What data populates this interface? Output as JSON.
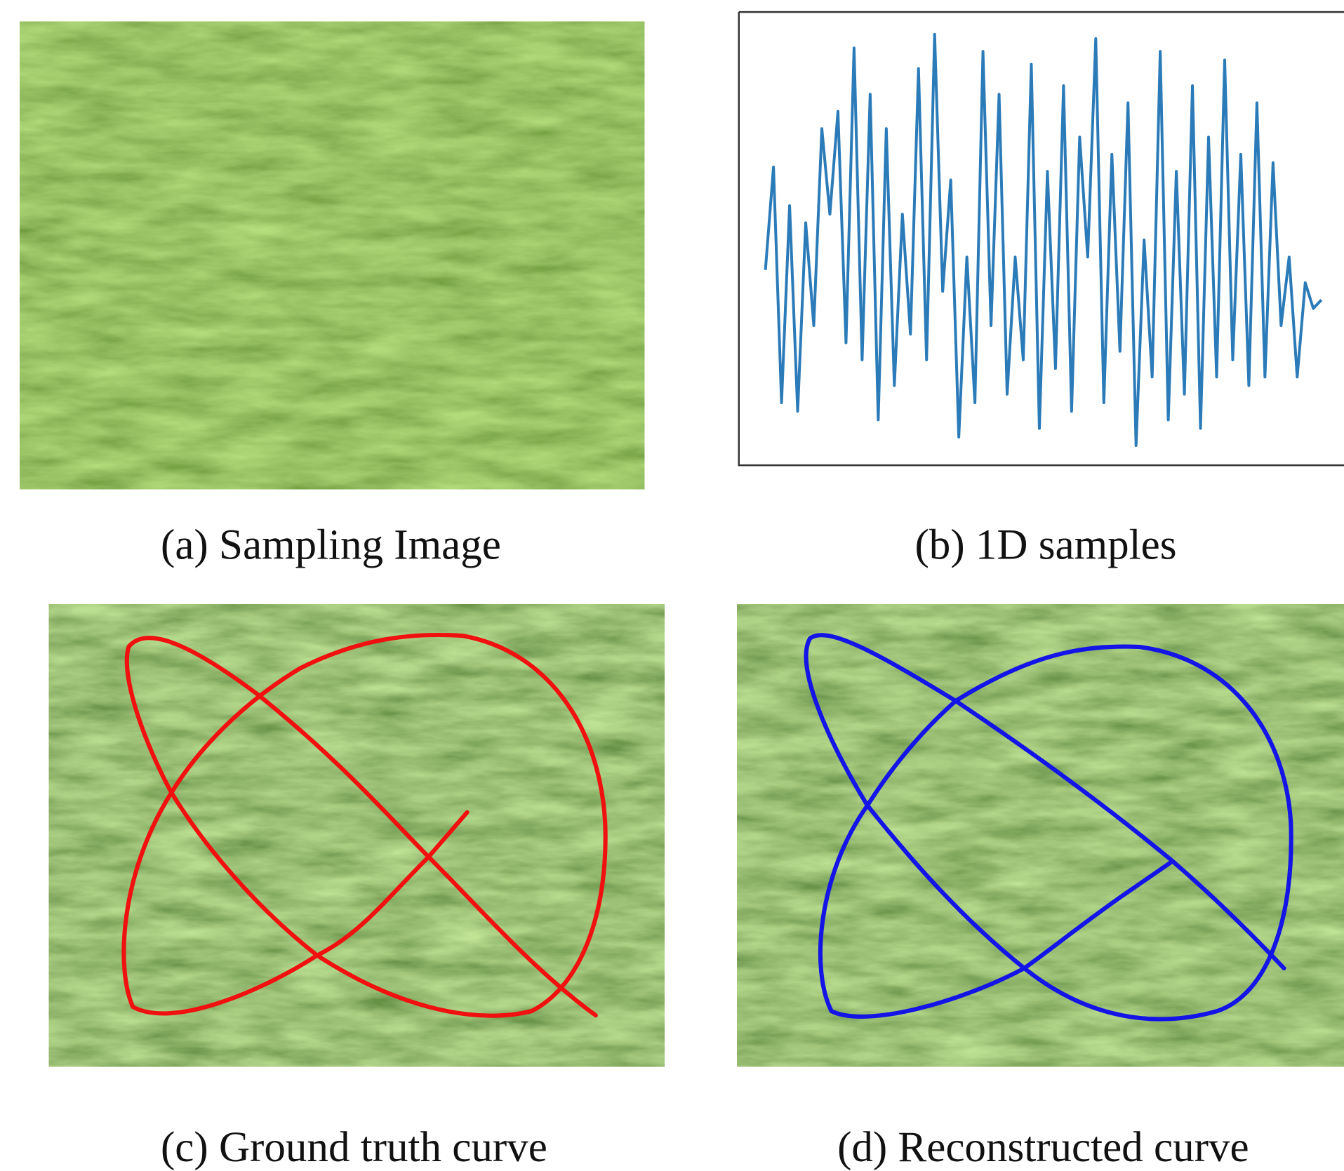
{
  "figure": {
    "panels": [
      {
        "caption": "(a) Sampling Image"
      },
      {
        "caption": "(b) 1D samples"
      },
      {
        "caption": "(c) Ground truth curve"
      },
      {
        "caption": "(d) Reconstructed curve"
      }
    ]
  }
}
